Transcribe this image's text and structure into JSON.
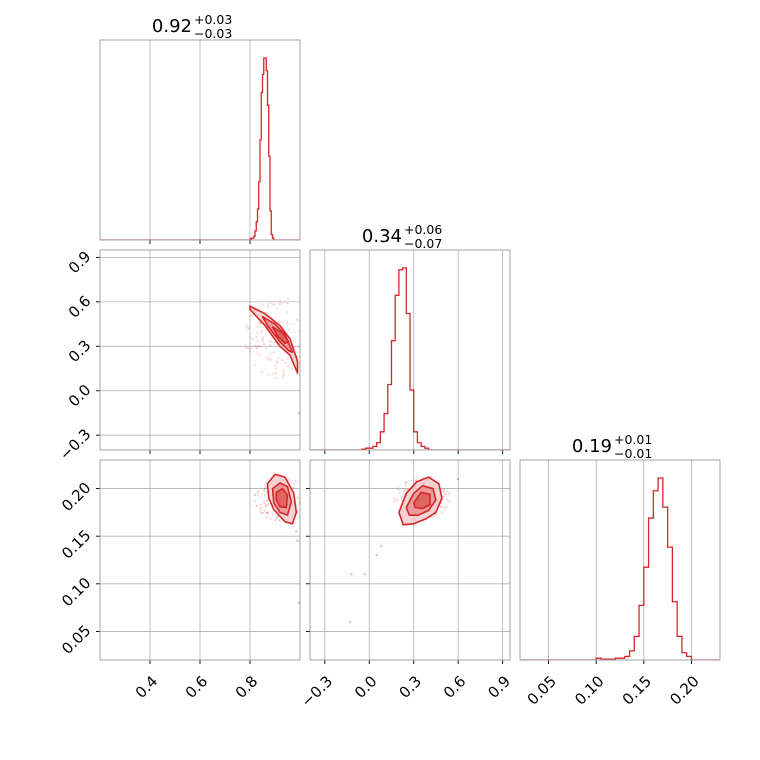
{
  "chart_data": {
    "type": "corner",
    "parameters": [
      {
        "range": [
          0.2,
          1.0
        ],
        "ticks": [
          0.4,
          0.6,
          0.8
        ],
        "tick_labels": [
          "0.4",
          "0.6",
          "0.8"
        ],
        "title": {
          "value": "0.92",
          "plus": "+0.03",
          "minus": "−0.03"
        },
        "hist": {
          "edges_start": 0.8,
          "bin_width": 0.005,
          "counts": [
            0.005,
            0.01,
            0.01,
            0.02,
            0.05,
            0.1,
            0.17,
            0.32,
            0.55,
            0.81,
            0.91,
            1.0,
            1.0,
            0.93,
            0.74,
            0.46,
            0.16,
            0.03,
            0.01,
            0,
            0
          ]
        }
      },
      {
        "range": [
          -0.4,
          0.95
        ],
        "ticks": [
          -0.3,
          0.0,
          0.3,
          0.6,
          0.9
        ],
        "tick_labels": [
          "−0.3",
          "0.0",
          "0.3",
          "0.6",
          "0.9"
        ],
        "title": {
          "value": "0.34",
          "plus": "+0.06",
          "minus": "−0.07"
        },
        "hist": {
          "edges_start": -0.05,
          "bin_width": 0.025,
          "counts": [
            0.005,
            0.01,
            0.01,
            0.02,
            0.04,
            0.1,
            0.2,
            0.36,
            0.6,
            0.85,
            0.99,
            1.0,
            0.75,
            0.33,
            0.1,
            0.04,
            0.02,
            0.01,
            0,
            0
          ]
        }
      },
      {
        "range": [
          0.02,
          0.23
        ],
        "ticks": [
          0.05,
          0.1,
          0.15,
          0.2
        ],
        "tick_labels": [
          "0.05",
          "0.10",
          "0.15",
          "0.20"
        ],
        "title": {
          "value": "0.19",
          "plus": "+0.01",
          "minus": "−0.01"
        },
        "hist": {
          "edges_start": 0.1,
          "bin_width": 0.005,
          "counts": [
            0.01,
            0.005,
            0.005,
            0.005,
            0.01,
            0.01,
            0.02,
            0.05,
            0.13,
            0.3,
            0.51,
            0.78,
            0.93,
            1.0,
            0.84,
            0.62,
            0.32,
            0.13,
            0.04,
            0.02
          ]
        }
      }
    ],
    "pairs": [
      {
        "x_param": 0,
        "y_param": 1,
        "center": [
          0.92,
          0.36
        ],
        "contours": [
          {
            "level": "outer",
            "points": [
              [
                0.8,
                0.57
              ],
              [
                0.86,
                0.52
              ],
              [
                0.92,
                0.44
              ],
              [
                0.96,
                0.35
              ],
              [
                0.99,
                0.2
              ],
              [
                0.99,
                0.12
              ],
              [
                0.96,
                0.24
              ],
              [
                0.92,
                0.3
              ],
              [
                0.86,
                0.44
              ],
              [
                0.8,
                0.55
              ]
            ]
          },
          {
            "level": "mid",
            "points": [
              [
                0.85,
                0.5
              ],
              [
                0.9,
                0.45
              ],
              [
                0.94,
                0.38
              ],
              [
                0.97,
                0.26
              ],
              [
                0.955,
                0.27
              ],
              [
                0.92,
                0.33
              ],
              [
                0.87,
                0.44
              ]
            ]
          },
          {
            "level": "inner",
            "points": [
              [
                0.89,
                0.43
              ],
              [
                0.93,
                0.39
              ],
              [
                0.955,
                0.33
              ],
              [
                0.94,
                0.32
              ],
              [
                0.91,
                0.37
              ]
            ]
          }
        ],
        "outliers": [
          [
            0.995,
            -0.15
          ],
          [
            0.8,
            0.57
          ],
          [
            0.82,
            0.55
          ]
        ]
      },
      {
        "x_param": 0,
        "y_param": 2,
        "center": [
          0.93,
          0.188
        ],
        "contours": [
          {
            "level": "outer",
            "points": [
              [
                0.87,
                0.205
              ],
              [
                0.9,
                0.215
              ],
              [
                0.94,
                0.212
              ],
              [
                0.975,
                0.195
              ],
              [
                0.985,
                0.175
              ],
              [
                0.97,
                0.163
              ],
              [
                0.94,
                0.165
              ],
              [
                0.895,
                0.178
              ],
              [
                0.875,
                0.19
              ]
            ]
          },
          {
            "level": "mid",
            "points": [
              [
                0.89,
                0.2
              ],
              [
                0.92,
                0.206
              ],
              [
                0.95,
                0.202
              ],
              [
                0.965,
                0.186
              ],
              [
                0.95,
                0.172
              ],
              [
                0.92,
                0.175
              ],
              [
                0.895,
                0.185
              ]
            ]
          },
          {
            "level": "inner",
            "points": [
              [
                0.905,
                0.196
              ],
              [
                0.93,
                0.2
              ],
              [
                0.95,
                0.193
              ],
              [
                0.945,
                0.18
              ],
              [
                0.92,
                0.181
              ],
              [
                0.905,
                0.188
              ]
            ]
          }
        ],
        "outliers": [
          [
            0.995,
            0.08
          ],
          [
            0.99,
            0.145
          ],
          [
            0.985,
            0.155
          ]
        ]
      },
      {
        "x_param": 1,
        "y_param": 2,
        "center": [
          0.36,
          0.19
        ],
        "contours": [
          {
            "level": "outer",
            "points": [
              [
                0.2,
                0.175
              ],
              [
                0.25,
                0.195
              ],
              [
                0.32,
                0.207
              ],
              [
                0.4,
                0.212
              ],
              [
                0.47,
                0.205
              ],
              [
                0.49,
                0.19
              ],
              [
                0.45,
                0.175
              ],
              [
                0.38,
                0.168
              ],
              [
                0.3,
                0.163
              ],
              [
                0.23,
                0.162
              ]
            ]
          },
          {
            "level": "mid",
            "points": [
              [
                0.25,
                0.18
              ],
              [
                0.3,
                0.195
              ],
              [
                0.36,
                0.203
              ],
              [
                0.43,
                0.2
              ],
              [
                0.45,
                0.188
              ],
              [
                0.4,
                0.177
              ],
              [
                0.33,
                0.172
              ],
              [
                0.27,
                0.172
              ]
            ]
          },
          {
            "level": "inner",
            "points": [
              [
                0.3,
                0.185
              ],
              [
                0.35,
                0.196
              ],
              [
                0.41,
                0.194
              ],
              [
                0.41,
                0.183
              ],
              [
                0.36,
                0.179
              ],
              [
                0.31,
                0.18
              ]
            ]
          }
        ],
        "outliers": [
          [
            -0.12,
            0.11
          ],
          [
            -0.03,
            0.11
          ],
          [
            -0.13,
            0.06
          ],
          [
            0.05,
            0.13
          ],
          [
            0.08,
            0.14
          ],
          [
            0.6,
            0.21
          ]
        ]
      }
    ],
    "colors": {
      "series": "#d62728",
      "fill_light": "#f4c7c7",
      "fill_mid": "#e78a8a",
      "fill_dark": "#d9534f"
    },
    "grid": true
  }
}
